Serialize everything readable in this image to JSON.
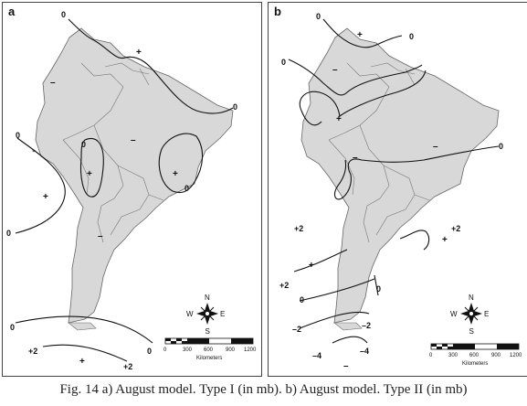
{
  "panels": [
    {
      "label": "a",
      "contour_labels": [
        "0",
        "0",
        "0",
        "0",
        "0",
        "0",
        "0",
        "0",
        "+2",
        "+2"
      ],
      "sign_labels": [
        "+",
        "+",
        "+",
        "+",
        "+",
        "+",
        "–",
        "–",
        "–",
        "–"
      ],
      "compass": {
        "n": "N",
        "s": "S",
        "e": "E",
        "w": "W"
      },
      "scale": {
        "ticks": [
          "0",
          "300",
          "600",
          "900",
          "1200"
        ],
        "unit": "Kilometers"
      }
    },
    {
      "label": "b",
      "contour_labels": [
        "0",
        "0",
        "0",
        "0",
        "0",
        "+2",
        "+2",
        "+2",
        "0",
        "–2",
        "–2",
        "–4",
        "–4"
      ],
      "sign_labels": [
        "+",
        "+",
        "+",
        "+",
        "–",
        "–",
        "–",
        "–"
      ],
      "compass": {
        "n": "N",
        "s": "S",
        "e": "E",
        "w": "W"
      },
      "scale": {
        "ticks": [
          "0",
          "300",
          "600",
          "900",
          "1200"
        ],
        "unit": "Kilometers"
      }
    }
  ],
  "caption": "Fig. 14 a) August model. Type I (in mb). b) August model. Type II (in mb)"
}
